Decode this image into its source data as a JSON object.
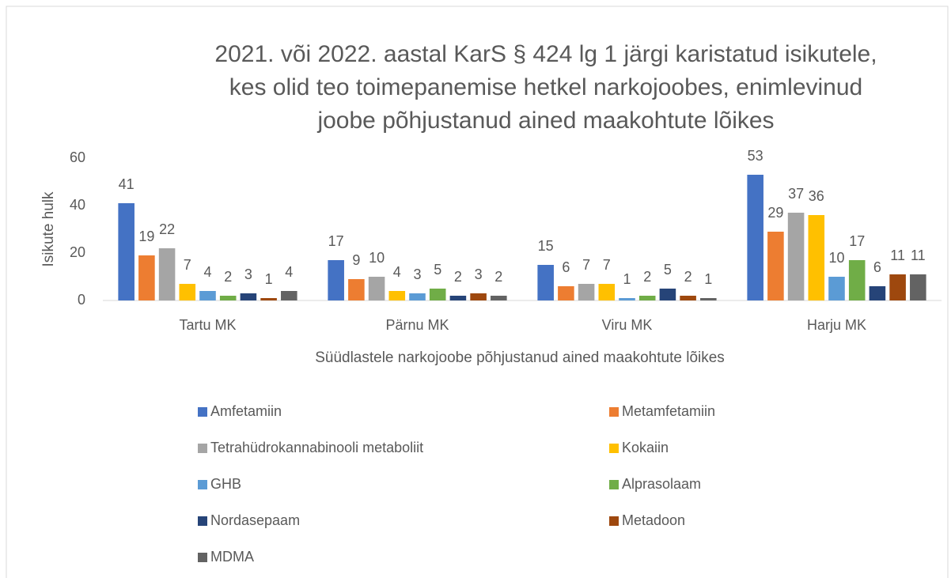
{
  "chart_data": {
    "type": "bar",
    "title": [
      "2021. või 2022. aastal KarS § 424 lg 1 järgi karistatud isikutele,",
      "kes olid teo toimepanemise hetkel narkojoobes, enimlevinud",
      "joobe põhjustanud ained maakohtute lõikes"
    ],
    "y_label": "Isikute hulk",
    "x_label": "Süüdlastele narkojoobe põhjustanud ained maakohtute lõikes",
    "categories": [
      "Tartu MK",
      "Pärnu MK",
      "Viru MK",
      "Harju MK"
    ],
    "ylim": [
      0,
      60
    ],
    "yticks": [
      0,
      20,
      40,
      60
    ],
    "grid": false,
    "series": [
      {
        "name": "Amfetamiin",
        "color": "#4472c4",
        "values": [
          41,
          17,
          15,
          53
        ]
      },
      {
        "name": "Metamfetamiin",
        "color": "#ed7d31",
        "values": [
          19,
          9,
          6,
          29
        ]
      },
      {
        "name": "Tetrahüdrokannabinooli metaboliit",
        "color": "#a5a5a5",
        "values": [
          22,
          10,
          7,
          37
        ]
      },
      {
        "name": "Kokaiin",
        "color": "#ffc000",
        "values": [
          7,
          4,
          7,
          36
        ]
      },
      {
        "name": "GHB",
        "color": "#5b9bd5",
        "values": [
          4,
          3,
          1,
          10
        ]
      },
      {
        "name": "Alprasolaam",
        "color": "#70ad47",
        "values": [
          2,
          5,
          2,
          17
        ]
      },
      {
        "name": "Nordasepaam",
        "color": "#264478",
        "values": [
          3,
          2,
          5,
          6
        ]
      },
      {
        "name": "Metadoon",
        "color": "#9e480e",
        "values": [
          1,
          3,
          2,
          11
        ]
      },
      {
        "name": "MDMA",
        "color": "#636363",
        "values": [
          4,
          2,
          1,
          11
        ]
      }
    ]
  }
}
